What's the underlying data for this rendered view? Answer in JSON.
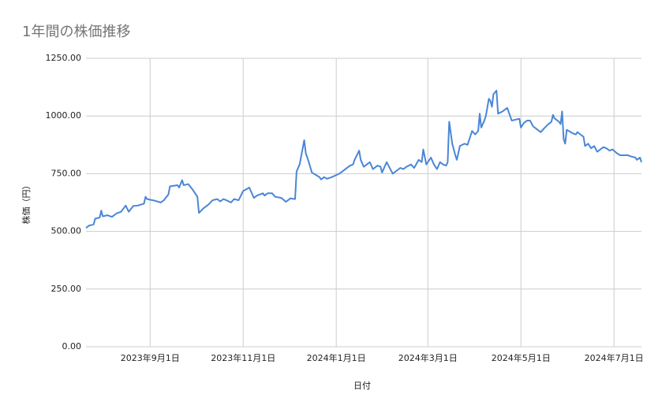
{
  "chart_data": {
    "type": "line",
    "title": "1年間の株価推移",
    "xlabel": "日付",
    "ylabel": "株価（円）",
    "color": "#4a86d6",
    "grid": true,
    "xlim": [
      "2023-07-21",
      "2024-07-19"
    ],
    "xticks": [
      {
        "value": "2023-09-01",
        "label": "2023年9月1日"
      },
      {
        "value": "2023-11-01",
        "label": "2023年11月1日"
      },
      {
        "value": "2024-01-01",
        "label": "2024年1月1日"
      },
      {
        "value": "2024-03-01",
        "label": "2024年3月1日"
      },
      {
        "value": "2024-05-01",
        "label": "2024年5月1日"
      },
      {
        "value": "2024-07-01",
        "label": "2024年7月1日"
      }
    ],
    "ylim": [
      0,
      1250
    ],
    "yticks": [
      {
        "value": 0,
        "label": "0.00"
      },
      {
        "value": 250,
        "label": "250.00"
      },
      {
        "value": 500,
        "label": "500.00"
      },
      {
        "value": 750,
        "label": "750.00"
      },
      {
        "value": 1000,
        "label": "1000.00"
      },
      {
        "value": 1250,
        "label": "1250.00"
      }
    ],
    "x": [
      "2023-07-21",
      "2023-07-23",
      "2023-07-26",
      "2023-07-27",
      "2023-07-30",
      "2023-07-31",
      "2023-08-01",
      "2023-08-04",
      "2023-08-07",
      "2023-08-10",
      "2023-08-13",
      "2023-08-16",
      "2023-08-18",
      "2023-08-21",
      "2023-08-24",
      "2023-08-28",
      "2023-08-29",
      "2023-08-30",
      "2023-09-04",
      "2023-09-08",
      "2023-09-10",
      "2023-09-13",
      "2023-09-14",
      "2023-09-19",
      "2023-09-20",
      "2023-09-22",
      "2023-09-23",
      "2023-09-26",
      "2023-09-29",
      "2023-10-02",
      "2023-10-03",
      "2023-10-06",
      "2023-10-09",
      "2023-10-12",
      "2023-10-15",
      "2023-10-17",
      "2023-10-19",
      "2023-10-21",
      "2023-10-24",
      "2023-10-26",
      "2023-10-29",
      "2023-11-01",
      "2023-11-05",
      "2023-11-08",
      "2023-11-10",
      "2023-11-14",
      "2023-11-15",
      "2023-11-17",
      "2023-11-20",
      "2023-11-22",
      "2023-11-26",
      "2023-11-29",
      "2023-12-02",
      "2023-12-05",
      "2023-12-06",
      "2023-12-08",
      "2023-12-11",
      "2023-12-12",
      "2023-12-14",
      "2023-12-16",
      "2023-12-21",
      "2023-12-22",
      "2023-12-24",
      "2023-12-26",
      "2023-12-29",
      "2024-01-03",
      "2024-01-07",
      "2024-01-10",
      "2024-01-12",
      "2024-01-13",
      "2024-01-16",
      "2024-01-17",
      "2024-01-19",
      "2024-01-21",
      "2024-01-23",
      "2024-01-25",
      "2024-01-28",
      "2024-01-30",
      "2024-01-31",
      "2024-02-03",
      "2024-02-05",
      "2024-02-07",
      "2024-02-10",
      "2024-02-12",
      "2024-02-14",
      "2024-02-16",
      "2024-02-19",
      "2024-02-21",
      "2024-02-24",
      "2024-02-26",
      "2024-02-27",
      "2024-02-29",
      "2024-03-01",
      "2024-03-03",
      "2024-03-05",
      "2024-03-07",
      "2024-03-09",
      "2024-03-11",
      "2024-03-13",
      "2024-03-14",
      "2024-03-15",
      "2024-03-17",
      "2024-03-19",
      "2024-03-20",
      "2024-03-22",
      "2024-03-25",
      "2024-03-27",
      "2024-03-30",
      "2024-04-01",
      "2024-04-03",
      "2024-04-04",
      "2024-04-05",
      "2024-04-07",
      "2024-04-08",
      "2024-04-10",
      "2024-04-11",
      "2024-04-12",
      "2024-04-13",
      "2024-04-15",
      "2024-04-16",
      "2024-04-19",
      "2024-04-22",
      "2024-04-25",
      "2024-04-28",
      "2024-04-30",
      "2024-05-01",
      "2024-05-03",
      "2024-05-05",
      "2024-05-07",
      "2024-05-09",
      "2024-05-11",
      "2024-05-14",
      "2024-05-16",
      "2024-05-19",
      "2024-05-21",
      "2024-05-22",
      "2024-05-23",
      "2024-05-26",
      "2024-05-27",
      "2024-05-28",
      "2024-05-29",
      "2024-05-30",
      "2024-05-31",
      "2024-06-04",
      "2024-06-06",
      "2024-06-07",
      "2024-06-09",
      "2024-06-11",
      "2024-06-12",
      "2024-06-14",
      "2024-06-16",
      "2024-06-18",
      "2024-06-20",
      "2024-06-24",
      "2024-06-26",
      "2024-06-28",
      "2024-06-30",
      "2024-07-03",
      "2024-07-05",
      "2024-07-10",
      "2024-07-12",
      "2024-07-15",
      "2024-07-16",
      "2024-07-18",
      "2024-07-19"
    ],
    "values": [
      515,
      525,
      530,
      555,
      560,
      590,
      565,
      570,
      563,
      578,
      585,
      612,
      585,
      610,
      612,
      620,
      650,
      640,
      633,
      625,
      635,
      660,
      695,
      700,
      690,
      722,
      700,
      705,
      680,
      650,
      580,
      600,
      615,
      635,
      640,
      630,
      640,
      635,
      625,
      640,
      635,
      675,
      690,
      645,
      655,
      665,
      655,
      665,
      665,
      650,
      645,
      628,
      643,
      640,
      760,
      790,
      895,
      840,
      800,
      755,
      735,
      725,
      735,
      728,
      735,
      750,
      770,
      785,
      790,
      810,
      850,
      810,
      780,
      790,
      800,
      770,
      785,
      780,
      755,
      800,
      775,
      750,
      765,
      775,
      770,
      780,
      790,
      775,
      810,
      800,
      855,
      790,
      800,
      820,
      790,
      770,
      800,
      790,
      785,
      800,
      975,
      880,
      830,
      810,
      870,
      880,
      875,
      935,
      920,
      935,
      1010,
      950,
      980,
      1000,
      1075,
      1065,
      1040,
      1095,
      1110,
      1010,
      1020,
      1035,
      980,
      985,
      988,
      950,
      970,
      980,
      980,
      955,
      945,
      930,
      945,
      965,
      975,
      1005,
      990,
      975,
      965,
      1020,
      900,
      880,
      940,
      925,
      920,
      930,
      920,
      910,
      870,
      880,
      860,
      870,
      845,
      865,
      860,
      850,
      855,
      838,
      830,
      830,
      825,
      820,
      810,
      820,
      800
    ]
  }
}
